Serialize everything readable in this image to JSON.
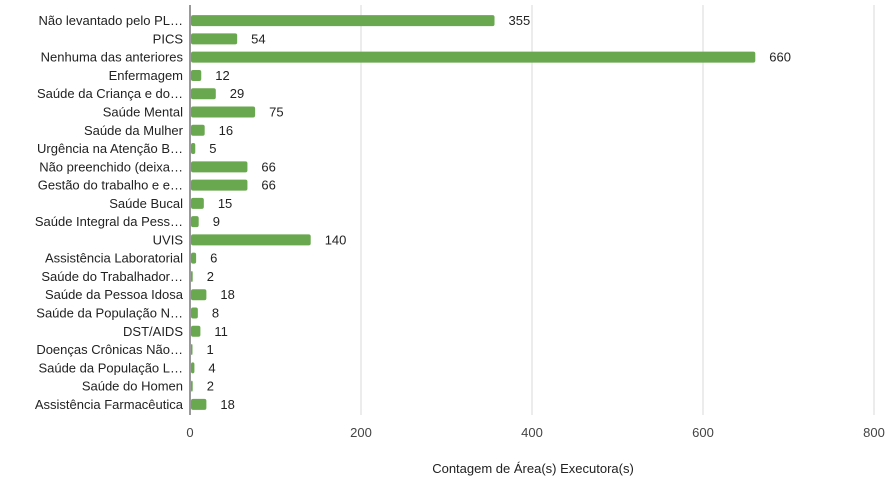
{
  "chart_data": {
    "type": "bar",
    "orientation": "horizontal",
    "categories": [
      "Não levantado pelo PL…",
      "PICS",
      "Nenhuma das anteriores",
      "Enfermagem",
      "Saúde da Criança e do…",
      "Saúde Mental",
      "Saúde da Mulher",
      "Urgência na Atenção B…",
      "Não preenchido (deixa…",
      "Gestão do trabalho e e…",
      "Saúde Bucal",
      "Saúde Integral da Pess…",
      "UVIS",
      "Assistência Laboratorial",
      "Saúde do Trabalhador…",
      "Saúde da Pessoa Idosa",
      "Saúde da População N…",
      "DST/AIDS",
      "Doenças Crônicas Não…",
      "Saúde da População L…",
      "Saúde do Homen",
      "Assistência Farmacêutica"
    ],
    "values": [
      355,
      54,
      660,
      12,
      29,
      75,
      16,
      5,
      66,
      66,
      15,
      9,
      140,
      6,
      2,
      18,
      8,
      11,
      1,
      4,
      2,
      18
    ],
    "value_labels": [
      "355",
      "54",
      "660",
      "12",
      "29",
      "75",
      "16",
      "5",
      "66",
      "66",
      "15",
      "9",
      "140",
      "6",
      "2",
      "18",
      "8",
      "11",
      "1",
      "4",
      "2",
      "18"
    ],
    "xlabel": "Contagem de Área(s) Executora(s)",
    "ylabel": "",
    "xlim": [
      0,
      800
    ],
    "xticks": [
      "0",
      "200",
      "400",
      "600",
      "800"
    ],
    "grid": "vertical",
    "bar_color": "#6aa84f",
    "grid_color": "#d9d9d9"
  }
}
